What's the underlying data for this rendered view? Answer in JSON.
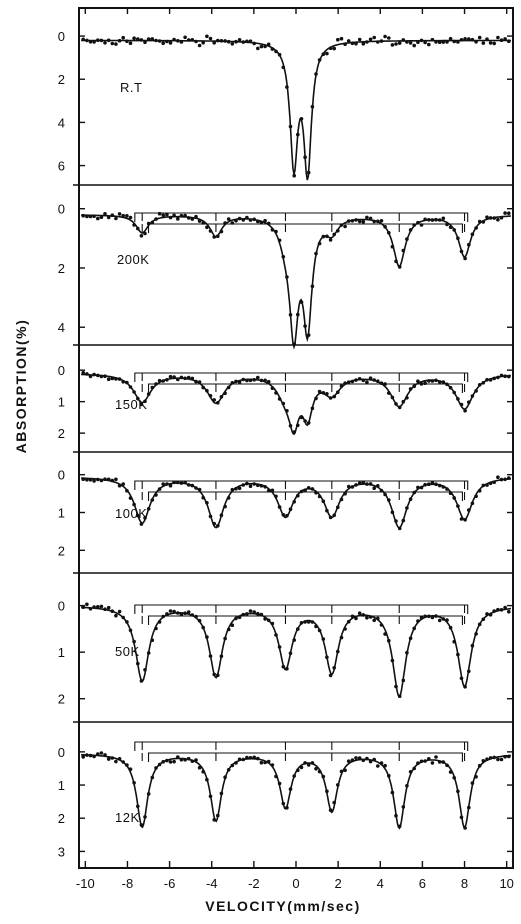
{
  "chart_data": {
    "type": "scatter",
    "xlabel": "VELOCITY(mm/sec)",
    "ylabel": "ABSORPTION(%)",
    "xlim": [
      -10.3,
      10.3
    ],
    "x_ticks": [
      -10,
      -8,
      -6,
      -4,
      -2,
      0,
      2,
      4,
      6,
      8,
      10
    ],
    "sextet_line_positions": [
      -7.3,
      -3.8,
      -0.5,
      1.7,
      4.9,
      8.0
    ],
    "panels": [
      {
        "label": "R.T",
        "ylim": [
          -1.3,
          6.9
        ],
        "yticks": [
          0,
          2,
          4,
          6
        ],
        "baseline": 0.2,
        "doublet": {
          "positions": [
            -0.1,
            0.55
          ],
          "depths": [
            5.6,
            5.9
          ],
          "width": 0.22
        },
        "sextet": null
      },
      {
        "label": "200K",
        "ylim": [
          -0.8,
          4.6
        ],
        "yticks": [
          0,
          2,
          4
        ],
        "baseline": 0.2,
        "doublet": {
          "positions": [
            -0.1,
            0.55
          ],
          "depths": [
            3.7,
            3.6
          ],
          "width": 0.25
        },
        "sextet": {
          "depths": [
            0.6,
            0.7,
            0.6,
            0.5,
            1.7,
            1.4
          ],
          "width": 0.35
        }
      },
      {
        "label": "150K",
        "ylim": [
          -0.8,
          2.6
        ],
        "yticks": [
          0,
          1,
          2
        ],
        "baseline": 0.1,
        "doublet": {
          "positions": [
            -0.1,
            0.55
          ],
          "depths": [
            1.3,
            1.2
          ],
          "width": 0.28
        },
        "sextet": {
          "depths": [
            0.9,
            0.9,
            0.6,
            0.6,
            1.0,
            1.1
          ],
          "width": 0.5
        }
      },
      {
        "label": "100K",
        "ylim": [
          -0.6,
          2.6
        ],
        "yticks": [
          0,
          1,
          2
        ],
        "baseline": 0.05,
        "doublet": null,
        "sextet": {
          "depths": [
            1.2,
            1.3,
            1.0,
            1.0,
            1.3,
            1.1
          ],
          "width": 0.45
        }
      },
      {
        "label": "50K",
        "ylim": [
          -0.7,
          2.5
        ],
        "yticks": [
          0,
          1,
          2
        ],
        "baseline": 0.0,
        "doublet": null,
        "sextet": {
          "depths": [
            1.6,
            1.5,
            1.3,
            1.4,
            1.9,
            1.7
          ],
          "width": 0.38
        }
      },
      {
        "label": "12K",
        "ylim": [
          -0.9,
          3.5
        ],
        "yticks": [
          0,
          1,
          2,
          3
        ],
        "baseline": 0.05,
        "doublet": null,
        "sextet": {
          "depths": [
            2.2,
            2.0,
            1.6,
            1.7,
            2.2,
            2.2
          ],
          "width": 0.32
        }
      }
    ]
  }
}
